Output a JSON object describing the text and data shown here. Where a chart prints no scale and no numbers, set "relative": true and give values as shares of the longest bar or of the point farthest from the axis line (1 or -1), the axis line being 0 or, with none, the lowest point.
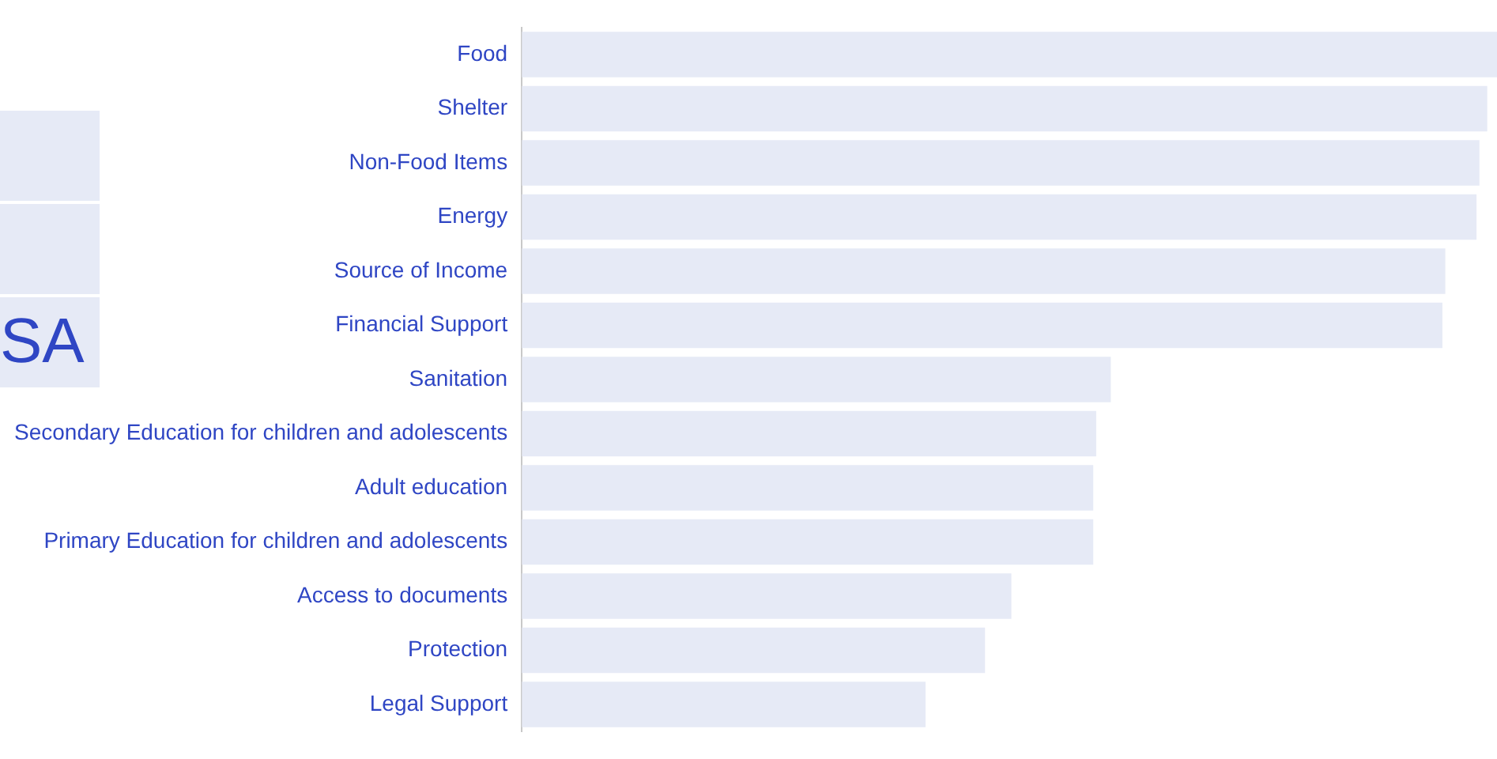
{
  "chart_data": {
    "type": "bar",
    "orientation": "horizontal",
    "relative": true,
    "categories": [
      "Food",
      "Shelter",
      "Non-Food Items",
      "Energy",
      "Source of Income",
      "Financial Support",
      "Sanitation",
      "Secondary Education for children and adolescents",
      "Adult education",
      "Primary Education for children and adolescents",
      "Access to documents",
      "Protection",
      "Legal Support"
    ],
    "values": [
      1,
      0.99,
      0.982,
      0.979,
      0.947,
      0.944,
      0.604,
      0.589,
      0.586,
      0.586,
      0.502,
      0.475,
      0.414
    ],
    "color": "#e6eaf6",
    "annotations": [
      "SA"
    ]
  }
}
